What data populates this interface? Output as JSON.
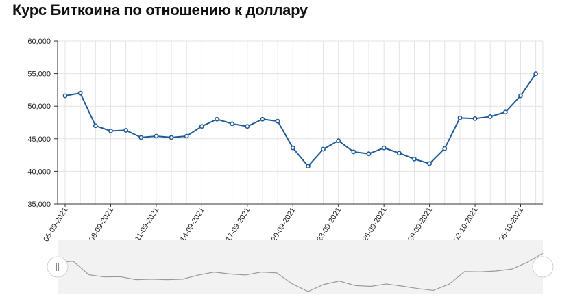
{
  "chart_data": {
    "type": "line",
    "title": "Курс Биткоина по отношению к доллару",
    "xlabel": "",
    "ylabel": "",
    "ylim": [
      35000,
      60000
    ],
    "yticks": [
      35000,
      40000,
      45000,
      50000,
      55000,
      60000
    ],
    "ytick_labels": [
      "35,000",
      "40,000",
      "45,000",
      "50,000",
      "55,000",
      "60,000"
    ],
    "x": [
      "05-09-2021",
      "06-09-2021",
      "07-09-2021",
      "08-09-2021",
      "09-09-2021",
      "10-09-2021",
      "11-09-2021",
      "12-09-2021",
      "13-09-2021",
      "14-09-2021",
      "15-09-2021",
      "16-09-2021",
      "17-09-2021",
      "18-09-2021",
      "19-09-2021",
      "20-09-2021",
      "21-09-2021",
      "22-09-2021",
      "23-09-2021",
      "24-09-2021",
      "25-09-2021",
      "26-09-2021",
      "27-09-2021",
      "28-09-2021",
      "29-09-2021",
      "30-09-2021",
      "01-10-2021",
      "02-10-2021",
      "03-10-2021",
      "04-10-2021",
      "05-10-2021",
      "06-10-2021"
    ],
    "xtick_labels": [
      "05-09-2021",
      "08-09-2021",
      "11-09-2021",
      "14-09-2021",
      "17-09-2021",
      "20-09-2021",
      "23-09-2021",
      "26-09-2021",
      "29-09-2021",
      "02-10-2021",
      "05-10-2021"
    ],
    "series": [
      {
        "values": [
          51600,
          52000,
          47000,
          46200,
          46300,
          45200,
          45400,
          45200,
          45400,
          46900,
          48000,
          47300,
          46900,
          48000,
          47700,
          43600,
          40800,
          43400,
          44700,
          43000,
          42700,
          43600,
          42800,
          41900,
          41200,
          43500,
          48200,
          48100,
          48400,
          49100,
          51600,
          55000
        ],
        "color": "#1f5a96"
      }
    ],
    "grid": true,
    "navigator": true,
    "colors": {
      "line": "#1f5a96",
      "marker_fill": "#ffffff",
      "grid": "#e3e3e3",
      "navigator_bg": "#f2f2f2",
      "navigator_line": "#999999",
      "axis": "#333333"
    }
  }
}
